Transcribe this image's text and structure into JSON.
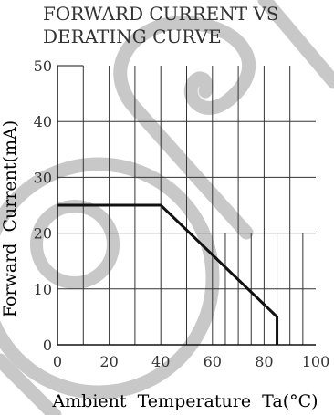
{
  "chart_data": {
    "type": "line",
    "title_lines": [
      "FORWARD CURRENT VS",
      "DERATING CURVE"
    ],
    "xlabel": "Ambient  Temperature  Ta(°C)",
    "ylabel": "Forward  Current(mA)",
    "xlim": [
      0,
      100
    ],
    "ylim": [
      0,
      50
    ],
    "x_ticks": [
      0,
      20,
      40,
      60,
      80,
      100
    ],
    "y_ticks": [
      0,
      10,
      20,
      30,
      40,
      50
    ],
    "grid": true,
    "series": [
      {
        "x": [
          0,
          40,
          85,
          85
        ],
        "y": [
          25,
          25,
          5,
          0
        ]
      }
    ]
  },
  "colors": {
    "axis": "#111111",
    "grid": "#333333",
    "curve": "#111111",
    "text": "#333333",
    "title": "#333333",
    "watermark": "#c8c8c8"
  }
}
